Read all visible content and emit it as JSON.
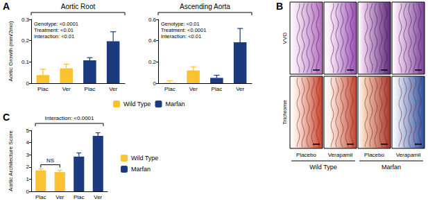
{
  "chart_data": [
    {
      "type": "bar",
      "panel": "A",
      "title": "Aortic Root",
      "y_label": "Aortic Growth (mm/2mo)",
      "categories": [
        "Plac",
        "Ver",
        "Plac",
        "Ver"
      ],
      "series": [
        {
          "name": "Wild Type",
          "color": "#F9C22E",
          "values": [
            0.038,
            0.07,
            null,
            null
          ],
          "errors": [
            0.028,
            0.02,
            null,
            null
          ]
        },
        {
          "name": "Marfan",
          "color": "#1B3A80",
          "values": [
            null,
            null,
            0.108,
            0.197
          ],
          "errors": [
            null,
            null,
            0.012,
            0.045
          ]
        }
      ],
      "annotations": [
        "Genotype: <0.0001",
        "Treatment: <0.01",
        "Interaction: <0.01"
      ],
      "ylim": [
        0,
        0.3
      ],
      "yticks": [
        0,
        0.1,
        0.2,
        0.3
      ],
      "grid": false
    },
    {
      "type": "bar",
      "title": "Ascending Aorta",
      "categories": [
        "Plac",
        "Ver",
        "Plac",
        "Ver"
      ],
      "series": [
        {
          "name": "Wild Type",
          "color": "#F9C22E",
          "values": [
            0.003,
            0.12,
            null,
            null
          ],
          "errors": [
            0.02,
            0.035,
            null,
            null
          ]
        },
        {
          "name": "Marfan",
          "color": "#1B3A80",
          "values": [
            null,
            null,
            0.05,
            0.385
          ],
          "errors": [
            null,
            null,
            0.025,
            0.13
          ]
        }
      ],
      "annotations": [
        "Genotype: <0.01",
        "Treatment: <0.0001",
        "Interaction: <0.01"
      ],
      "ylim": [
        0,
        0.6
      ],
      "yticks": [
        0,
        0.2,
        0.4,
        0.6
      ],
      "grid": false,
      "legend": "bottom"
    },
    {
      "type": "bar",
      "panel": "C",
      "y_label": "Aortic Architecture Score",
      "categories": [
        "Plac",
        "Ver",
        "Plac",
        "Ver"
      ],
      "series": [
        {
          "name": "Wild Type",
          "color": "#F9C22E",
          "values": [
            1.72,
            1.58,
            null,
            null
          ],
          "errors": [
            0.12,
            0.15,
            null,
            null
          ],
          "comparison_label": "NS"
        },
        {
          "name": "Marfan",
          "color": "#1B3A80",
          "values": [
            null,
            null,
            2.85,
            4.55
          ],
          "errors": [
            null,
            null,
            0.3,
            0.25
          ]
        }
      ],
      "annotations": [
        "Interaction: <0.0001"
      ],
      "ylim": [
        0,
        5
      ],
      "yticks": [
        0,
        1,
        2,
        3,
        4,
        5
      ],
      "grid": false,
      "legend": "right"
    }
  ],
  "histology": {
    "panel": "B",
    "rows": [
      "VVG",
      "Trichrome"
    ],
    "groups": [
      {
        "label": "Wild Type",
        "columns": [
          "Placebo",
          "Verapamil"
        ]
      },
      {
        "label": "Marfan",
        "columns": [
          "Placebo",
          "Verapamil"
        ]
      }
    ]
  }
}
